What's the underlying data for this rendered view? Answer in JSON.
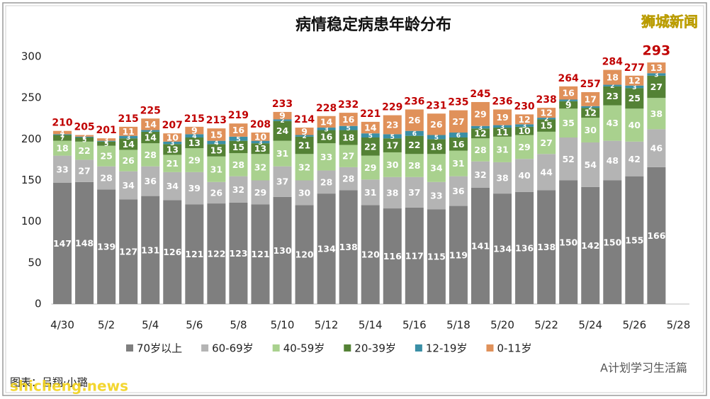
{
  "chart_data": {
    "type": "stacked_bar",
    "title": "病情稳定病患年龄分布",
    "watermark": "狮城新闻",
    "credit": "图表：吕翔·小璐",
    "site": "shicheng.news",
    "account": "A计划学习生活篇",
    "categories": [
      "4/30",
      null,
      "5/2",
      null,
      "5/4",
      null,
      "5/6",
      null,
      "5/8",
      null,
      "5/10",
      null,
      "5/12",
      null,
      "5/14",
      null,
      "5/16",
      null,
      "5/18",
      null,
      "5/20",
      null,
      "5/22",
      null,
      "5/24",
      null,
      "5/26",
      null,
      "5/28"
    ],
    "ylim": [
      0,
      300
    ],
    "yticks": [
      0,
      50,
      100,
      150,
      200,
      250,
      300
    ],
    "grid": false,
    "legend": "bottom",
    "series": [
      {
        "name": "70岁以上",
        "color": "#7f7f7f",
        "values": [
          147,
          148,
          139,
          127,
          131,
          126,
          121,
          122,
          123,
          121,
          130,
          120,
          134,
          138,
          120,
          116,
          117,
          115,
          119,
          141,
          134,
          136,
          138,
          150,
          142,
          150,
          155,
          166,
          null
        ]
      },
      {
        "name": "60-69岁",
        "color": "#b4b4b4",
        "values": [
          33,
          27,
          28,
          34,
          36,
          34,
          39,
          26,
          32,
          29,
          37,
          30,
          28,
          28,
          31,
          38,
          37,
          33,
          36,
          32,
          38,
          40,
          44,
          52,
          54,
          48,
          42,
          46,
          null
        ]
      },
      {
        "name": "40-59岁",
        "color": "#a9d18e",
        "values": [
          18,
          22,
          25,
          26,
          28,
          21,
          29,
          31,
          28,
          32,
          31,
          32,
          33,
          27,
          29,
          30,
          28,
          34,
          31,
          28,
          31,
          29,
          27,
          35,
          30,
          43,
          40,
          38,
          null
        ]
      },
      {
        "name": "20-39岁",
        "color": "#548235",
        "values": [
          7,
          5,
          5,
          14,
          14,
          13,
          13,
          15,
          15,
          13,
          24,
          21,
          16,
          18,
          22,
          17,
          22,
          18,
          16,
          12,
          11,
          10,
          15,
          9,
          12,
          23,
          25,
          27,
          null
        ]
      },
      {
        "name": "12-19岁",
        "color": "#3a8fa6",
        "values": [
          1,
          1,
          1,
          3,
          2,
          3,
          4,
          4,
          5,
          3,
          2,
          2,
          3,
          5,
          5,
          5,
          6,
          5,
          6,
          3,
          3,
          3,
          2,
          2,
          2,
          2,
          3,
          3,
          null
        ]
      },
      {
        "name": "0-11岁",
        "color": "#e0915a",
        "values": [
          4,
          2,
          3,
          11,
          14,
          10,
          9,
          15,
          16,
          10,
          9,
          9,
          14,
          16,
          14,
          23,
          26,
          26,
          27,
          29,
          19,
          12,
          12,
          16,
          17,
          18,
          12,
          13,
          null
        ]
      }
    ],
    "totals": [
      210,
      205,
      201,
      215,
      225,
      207,
      215,
      213,
      219,
      208,
      233,
      214,
      228,
      232,
      221,
      229,
      236,
      231,
      235,
      245,
      236,
      230,
      238,
      264,
      257,
      284,
      277,
      293,
      null
    ],
    "totals_color": "#c00000"
  }
}
